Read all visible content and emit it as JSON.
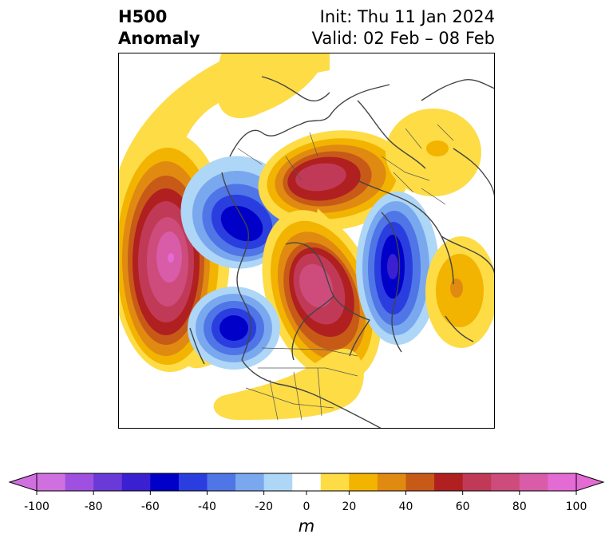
{
  "header": {
    "field": "H500",
    "kind": "Anomaly",
    "init": "Init: Thu 11 Jan 2024",
    "valid": "Valid: 02 Feb – 08 Feb"
  },
  "colorbar": {
    "unit": "m",
    "ticks": [
      "-100",
      "-80",
      "-60",
      "-40",
      "-20",
      "0",
      "20",
      "40",
      "60",
      "80",
      "100"
    ],
    "bins": [
      {
        "range": "-100 to -90",
        "color": "#d070e0"
      },
      {
        "range": "-90 to -80",
        "color": "#a050e0"
      },
      {
        "range": "-80 to -70",
        "color": "#6a3ad8"
      },
      {
        "range": "-70 to -60",
        "color": "#3a20d0"
      },
      {
        "range": "-60 to -50",
        "color": "#0000c8"
      },
      {
        "range": "-50 to -40",
        "color": "#2a3ee0"
      },
      {
        "range": "-40 to -30",
        "color": "#4f75e6"
      },
      {
        "range": "-30 to -20",
        "color": "#7aa8ee"
      },
      {
        "range": "-20 to -10",
        "color": "#aed6f6"
      },
      {
        "range": "-10 to 10",
        "color": "#ffffff"
      },
      {
        "range": "10 to 20",
        "color": "#fddc46"
      },
      {
        "range": "20 to 30",
        "color": "#f2b400"
      },
      {
        "range": "30 to 40",
        "color": "#e08a12"
      },
      {
        "range": "40 to 50",
        "color": "#c85a18"
      },
      {
        "range": "50 to 60",
        "color": "#b02020"
      },
      {
        "range": "60 to 70",
        "color": "#c03a58"
      },
      {
        "range": "70 to 80",
        "color": "#cd4c7c"
      },
      {
        "range": "80 to 90",
        "color": "#d85ca8"
      },
      {
        "range": "90 to 100",
        "color": "#e46ad4"
      }
    ],
    "extend": "both"
  },
  "map": {
    "projection": "polar stereographic",
    "coastline_color": "#444444"
  }
}
